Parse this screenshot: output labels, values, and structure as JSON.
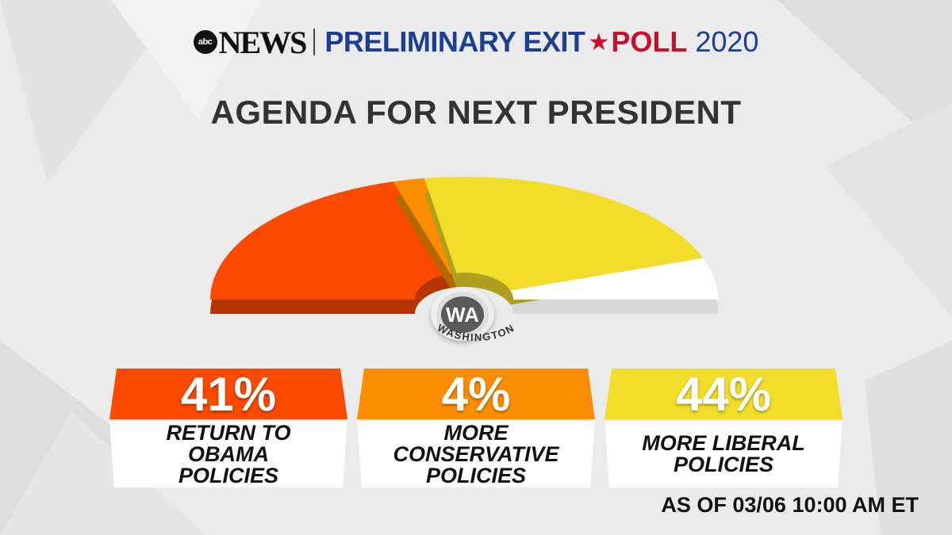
{
  "header": {
    "abc_logo": "abc",
    "network": "NEWS",
    "title_part1": "PRELIMINARY EXIT",
    "title_part2": "POLL",
    "year": "2020",
    "star_icon": "star-icon"
  },
  "chart_data": {
    "type": "pie",
    "title": "AGENDA FOR NEXT PRESIDENT",
    "state_abbr": "WA",
    "state_name": "WASHINGTON",
    "categories": [
      "RETURN TO OBAMA POLICIES",
      "MORE CONSERVATIVE POLICIES",
      "MORE LIBERAL POLICIES"
    ],
    "values": [
      41,
      4,
      44
    ],
    "labels": [
      "41%",
      "4%",
      "44%"
    ],
    "card_labels": [
      "RETURN TO\nOBAMA\nPOLICIES",
      "MORE\nCONSERVATIVE\nPOLICIES",
      "MORE LIBERAL\nPOLICIES"
    ],
    "colors": [
      "#fa4a00",
      "#fb8d00",
      "#f2dd2a"
    ],
    "remainder_color": "#ffffff"
  },
  "footer": {
    "as_of": "AS OF 03/06 10:00 AM ET"
  }
}
